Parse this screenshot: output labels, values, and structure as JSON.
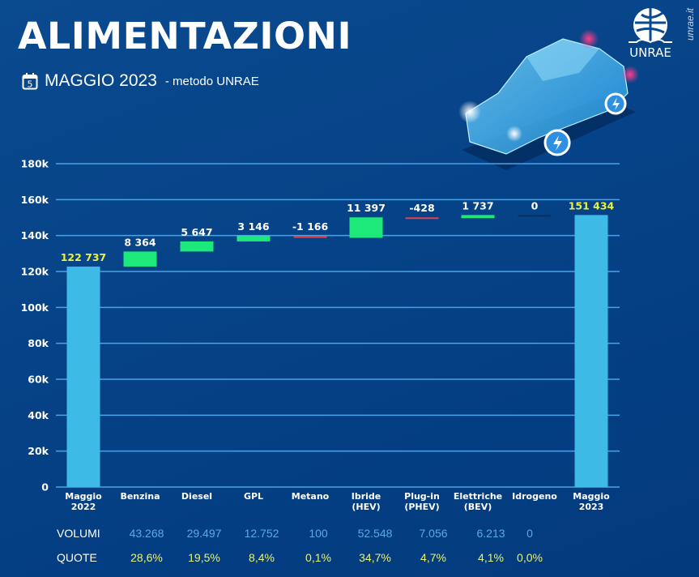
{
  "header": {
    "title": "ALIMENTAZIONI",
    "calendar_day": "5",
    "period": "MAGGIO 2023",
    "method": "- metodo UNRAE",
    "logo_text": "UNRAE",
    "site": "unrae.it"
  },
  "colors": {
    "background": "#064287",
    "total_bar": "#3dbbe6",
    "increase_bar": "#1de87a",
    "decrease_bar": "#e0434d",
    "gridline": "#4aa3e6",
    "total_label": "#ecf23c",
    "volumi_text": "#5aa9e6",
    "quote_text": "#e5f27a"
  },
  "chart_data": {
    "type": "waterfall",
    "title": "ALIMENTAZIONI",
    "subtitle": "MAGGIO 2023 - metodo UNRAE",
    "categories": [
      "Maggio 2022",
      "Benzina",
      "Diesel",
      "GPL",
      "Metano",
      "Ibride (HEV)",
      "Plug-in (PHEV)",
      "Elettriche (BEV)",
      "Idrogeno",
      "Maggio 2023"
    ],
    "category_lines": [
      [
        "Maggio",
        "2022"
      ],
      [
        "Benzina"
      ],
      [
        "Diesel"
      ],
      [
        "GPL"
      ],
      [
        "Metano"
      ],
      [
        "Ibride",
        "(HEV)"
      ],
      [
        "Plug-in",
        "(PHEV)"
      ],
      [
        "Elettriche",
        "(BEV)"
      ],
      [
        "Idrogeno"
      ],
      [
        "Maggio",
        "2023"
      ]
    ],
    "kinds": [
      "total",
      "delta",
      "delta",
      "delta",
      "delta",
      "delta",
      "delta",
      "delta",
      "delta",
      "total"
    ],
    "values": [
      122737,
      8364,
      5647,
      3146,
      -1166,
      11397,
      -428,
      1737,
      0,
      151434
    ],
    "labels": [
      "122 737",
      "8 364",
      "5 647",
      "3 146",
      "-1 166",
      "11 397",
      "-428",
      "1 737",
      "0",
      "151 434"
    ],
    "ylim": [
      0,
      180000
    ],
    "yticks": [
      0,
      20000,
      40000,
      60000,
      80000,
      100000,
      120000,
      140000,
      160000,
      180000
    ],
    "ytick_labels": [
      "0",
      "20k",
      "40k",
      "60k",
      "80k",
      "100k",
      "120k",
      "140k",
      "160k",
      "180k"
    ],
    "grid": true,
    "xlabel": "",
    "ylabel": ""
  },
  "table": {
    "rows": [
      {
        "label": "VOLUMI",
        "values": [
          "43.268",
          "29.497",
          "12.752",
          "100",
          "52.548",
          "7.056",
          "6.213",
          "0"
        ]
      },
      {
        "label": "QUOTE",
        "values": [
          "28,6%",
          "19,5%",
          "8,4%",
          "0,1%",
          "34,7%",
          "4,7%",
          "4,1%",
          "0,0%"
        ]
      }
    ]
  }
}
